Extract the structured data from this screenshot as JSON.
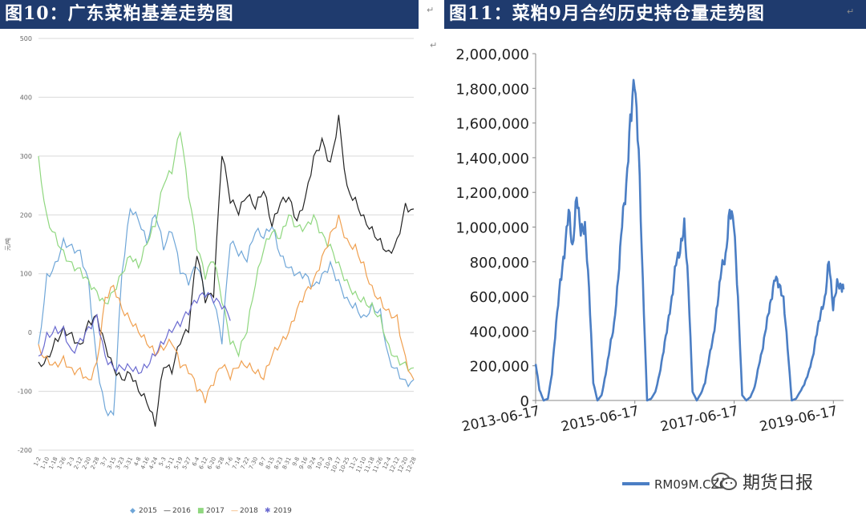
{
  "left_panel": {
    "title": "图10：广东菜粕基差走势图",
    "chart_data": {
      "type": "line",
      "title": "图10：广东菜粕基差走势图",
      "ylabel": "元/吨",
      "xlabel": "",
      "ylim": [
        -200,
        500
      ],
      "yticks": [
        -200,
        -100,
        0,
        100,
        200,
        300,
        400,
        500
      ],
      "grid": true,
      "legend": "bottom",
      "x_tick_labels": [
        "1-2",
        "1-10",
        "1-18",
        "1-26",
        "2-3",
        "2-12",
        "2-20",
        "2-28",
        "3-7",
        "3-15",
        "3-23",
        "3-31",
        "4-8",
        "4-16",
        "4-24",
        "5-3",
        "5-11",
        "5-19",
        "5-27",
        "6-4",
        "6-12",
        "6-20",
        "6-28",
        "7-6",
        "7-14",
        "7-22",
        "7-30",
        "8-7",
        "8-15",
        "8-23",
        "8-31",
        "9-8",
        "9-16",
        "9-24",
        "10-2",
        "10-9",
        "10-17",
        "10-25",
        "11-2",
        "11-10",
        "11-18",
        "11-26",
        "12-4",
        "12-12",
        "12-20",
        "12-28"
      ],
      "series": [
        {
          "name": "2015",
          "color": "#6fa6d8",
          "marker": "◆",
          "values": [
            -20,
            100,
            120,
            160,
            150,
            140,
            90,
            -50,
            -130,
            -140,
            100,
            210,
            190,
            150,
            200,
            140,
            170,
            100,
            80,
            110,
            60,
            50,
            -20,
            150,
            130,
            120,
            170,
            160,
            180,
            130,
            110,
            100,
            100,
            80,
            100,
            120,
            90,
            60,
            50,
            30,
            50,
            40,
            -40,
            -60,
            -80,
            -80
          ]
        },
        {
          "name": "2016",
          "color": "#222222",
          "marker": "—",
          "values": [
            -50,
            -40,
            -10,
            10,
            0,
            -20,
            20,
            30,
            -20,
            -60,
            -80,
            -70,
            -100,
            -120,
            -160,
            -60,
            -70,
            -20,
            0,
            130,
            50,
            60,
            300,
            220,
            200,
            230,
            210,
            240,
            180,
            220,
            230,
            190,
            230,
            300,
            330,
            290,
            370,
            250,
            230,
            200,
            180,
            160,
            140,
            160,
            220,
            210
          ]
        },
        {
          "name": "2017",
          "color": "#8fd77f",
          "marker": "■",
          "values": [
            300,
            200,
            170,
            140,
            120,
            110,
            90,
            70,
            50,
            70,
            100,
            130,
            110,
            150,
            180,
            250,
            270,
            340,
            230,
            140,
            90,
            120,
            50,
            -20,
            -40,
            0,
            80,
            140,
            170,
            160,
            200,
            180,
            180,
            200,
            170,
            150,
            120,
            90,
            70,
            60,
            50,
            30,
            -20,
            -40,
            -50,
            -60
          ]
        },
        {
          "name": "2018",
          "color": "#f0a050",
          "marker": "—",
          "values": [
            -20,
            -40,
            -50,
            -40,
            -60,
            -60,
            -80,
            -50,
            60,
            80,
            40,
            20,
            0,
            -20,
            -40,
            -30,
            -20,
            -60,
            -70,
            -100,
            -120,
            -90,
            -60,
            -80,
            -60,
            -60,
            -70,
            -80,
            -40,
            -20,
            0,
            40,
            70,
            90,
            130,
            170,
            200,
            160,
            150,
            120,
            80,
            60,
            40,
            30,
            -40,
            -80
          ]
        },
        {
          "name": "2019",
          "color": "#6a6ad0",
          "marker": "✱",
          "values": [
            -40,
            0,
            10,
            10,
            -30,
            -10,
            10,
            30,
            -40,
            -60,
            -60,
            -60,
            -70,
            -60,
            -40,
            -20,
            0,
            10,
            30,
            50,
            60,
            50,
            40,
            20,
            null,
            null,
            null,
            null,
            null,
            null,
            null,
            null,
            null,
            null,
            null,
            null,
            null,
            null,
            null,
            null,
            null,
            null,
            null,
            null,
            null,
            null
          ]
        }
      ]
    }
  },
  "right_panel": {
    "title": "图11：菜粕9月合约历史持仓量走势图",
    "chart_data": {
      "type": "line",
      "title": "图11：菜粕9月合约历史持仓量走势图",
      "xlabel": "",
      "ylabel": "",
      "ylim": [
        0,
        2000000
      ],
      "yticks": [
        0,
        200000,
        400000,
        600000,
        800000,
        1000000,
        1200000,
        1400000,
        1600000,
        1800000,
        2000000
      ],
      "ytick_labels": [
        "0",
        "200,000",
        "400,000",
        "600,000",
        "800,000",
        "1,000,000",
        "1,200,000",
        "1,400,000",
        "1,600,000",
        "1,800,000",
        "2,000,000"
      ],
      "xtick_labels": [
        "2013-06-17",
        "2015-06-17",
        "2017-06-17",
        "2019-06-17"
      ],
      "xlim": [
        "2013-06-17",
        "2019-08-31"
      ],
      "grid": false,
      "legend": "bottom",
      "series": [
        {
          "name": "RM09M.CZC",
          "color": "#4b7ec4",
          "x": [
            "2013-06-17",
            "2013-07-15",
            "2013-08-15",
            "2013-09-15",
            "2013-10-15",
            "2013-11-15",
            "2013-12-15",
            "2014-01-15",
            "2014-02-15",
            "2014-03-15",
            "2014-04-15",
            "2014-05-15",
            "2014-06-15",
            "2014-07-15",
            "2014-08-15",
            "2014-09-15",
            "2014-10-15",
            "2014-11-15",
            "2014-12-15",
            "2015-01-15",
            "2015-02-15",
            "2015-03-15",
            "2015-04-15",
            "2015-05-15",
            "2015-06-15",
            "2015-07-15",
            "2015-08-15",
            "2015-09-15",
            "2015-10-15",
            "2015-11-15",
            "2015-12-15",
            "2016-01-15",
            "2016-02-15",
            "2016-03-15",
            "2016-04-15",
            "2016-05-15",
            "2016-06-15",
            "2016-07-15",
            "2016-08-15",
            "2016-09-15",
            "2016-10-15",
            "2016-11-15",
            "2016-12-15",
            "2017-01-15",
            "2017-02-15",
            "2017-03-15",
            "2017-04-15",
            "2017-05-15",
            "2017-06-15",
            "2017-07-15",
            "2017-08-15",
            "2017-09-15",
            "2017-10-15",
            "2017-11-15",
            "2017-12-15",
            "2018-01-15",
            "2018-02-15",
            "2018-03-15",
            "2018-04-15",
            "2018-05-15",
            "2018-06-15",
            "2018-07-15",
            "2018-08-15",
            "2018-09-15",
            "2018-10-15",
            "2018-11-15",
            "2018-12-15",
            "2019-01-15",
            "2019-02-15",
            "2019-03-15",
            "2019-04-15",
            "2019-05-15",
            "2019-06-15",
            "2019-07-15",
            "2019-08-15",
            "2019-08-31"
          ],
          "values": [
            210000,
            60000,
            0,
            10000,
            150000,
            450000,
            700000,
            820000,
            1100000,
            900000,
            1170000,
            950000,
            1030000,
            650000,
            100000,
            0,
            30000,
            150000,
            300000,
            450000,
            700000,
            1000000,
            1250000,
            1650000,
            1800000,
            1450000,
            700000,
            0,
            10000,
            50000,
            150000,
            280000,
            450000,
            600000,
            780000,
            850000,
            1050000,
            650000,
            50000,
            0,
            40000,
            100000,
            250000,
            380000,
            550000,
            750000,
            850000,
            1100000,
            1000000,
            600000,
            30000,
            0,
            20000,
            80000,
            200000,
            300000,
            480000,
            580000,
            690000,
            670000,
            600000,
            300000,
            0,
            10000,
            50000,
            90000,
            160000,
            250000,
            380000,
            500000,
            600000,
            800000,
            520000,
            700000,
            650000,
            640000
          ]
        }
      ]
    }
  },
  "brand": {
    "text": "期货日报"
  },
  "misc": {
    "return_mark": "↵"
  }
}
